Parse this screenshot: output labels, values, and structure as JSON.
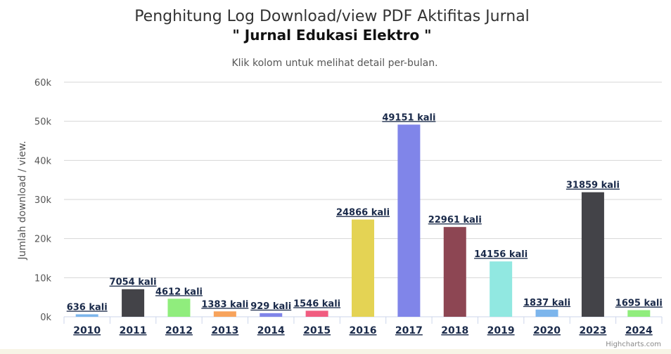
{
  "chart_data": {
    "type": "bar",
    "title_line1": "Penghitung Log Download/view PDF Aktifitas Jurnal",
    "title_line2": "\" Jurnal Edukasi Elektro \"",
    "subtitle": "Klik kolom untuk melihat detail per-bulan.",
    "ylabel": "Jumlah download / view.",
    "ylim": [
      0,
      60000
    ],
    "yticks": [
      0,
      10000,
      20000,
      30000,
      40000,
      50000,
      60000
    ],
    "ytick_labels": [
      "0k",
      "10k",
      "20k",
      "30k",
      "40k",
      "50k",
      "60k"
    ],
    "grid": true,
    "categories": [
      "2010",
      "2011",
      "2012",
      "2013",
      "2014",
      "2015",
      "2016",
      "2017",
      "2018",
      "2019",
      "2020",
      "2023",
      "2024"
    ],
    "values": [
      636,
      7054,
      4612,
      1383,
      929,
      1546,
      24866,
      49151,
      22961,
      14156,
      1837,
      31859,
      1695
    ],
    "data_labels": [
      "636 kali",
      "7054 kali",
      "4612 kali",
      "1383 kali",
      "929 kali",
      "1546 kali",
      "24866 kali",
      "49151 kali",
      "22961 kali",
      "14156 kali",
      "1837 kali",
      "31859 kali",
      "1695 kali"
    ],
    "colors": [
      "#7cb5ec",
      "#434348",
      "#90ed7d",
      "#f7a35c",
      "#8085e9",
      "#f15c80",
      "#e4d354",
      "#8085e9",
      "#8d4653",
      "#91e8e1",
      "#7cb5ec",
      "#434348",
      "#90ed7d"
    ],
    "credits": "Highcharts.com"
  }
}
